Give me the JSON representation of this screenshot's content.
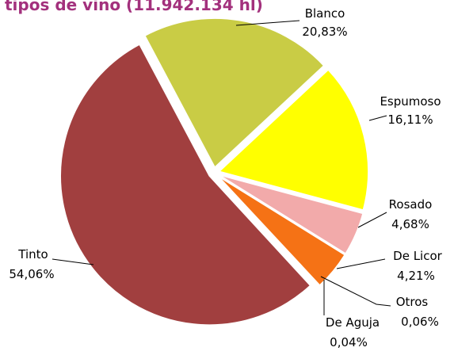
{
  "chart_data": {
    "type": "pie",
    "title": "tipos de vino (11.942.134 hl)",
    "categories": [
      "Blanco",
      "Espumoso",
      "Rosado",
      "De Licor",
      "Otros",
      "De Aguja",
      "Tinto"
    ],
    "values": [
      20.83,
      16.11,
      4.68,
      4.21,
      0.06,
      0.04,
      54.06
    ],
    "value_labels": [
      "20,83%",
      "16,11%",
      "4,68%",
      "4,21%",
      "0,06%",
      "0,04%",
      "54,06%"
    ],
    "colors": [
      "#c9cc45",
      "#ffff00",
      "#f2aaaa",
      "#f57215",
      "#7f7f7f",
      "#4f81bd",
      "#a13f3f"
    ]
  }
}
